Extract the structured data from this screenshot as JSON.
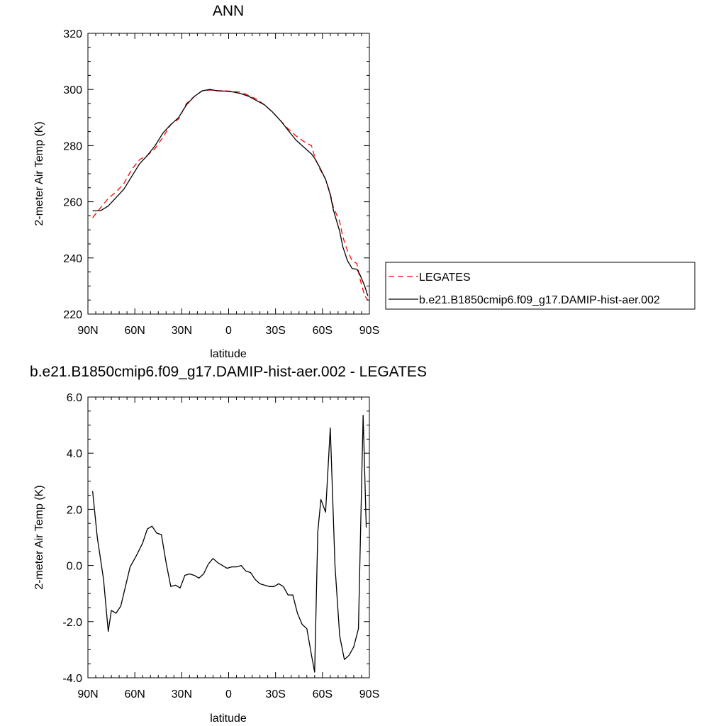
{
  "chart_data": [
    {
      "type": "line",
      "title": "ANN",
      "xlabel": "latitude",
      "ylabel": "2-meter Air Temp (K)",
      "xlim": [
        90,
        -90
      ],
      "ylim": [
        220,
        320
      ],
      "x_ticks": [
        {
          "value": 90,
          "label": "90N"
        },
        {
          "value": 60,
          "label": "60N"
        },
        {
          "value": 30,
          "label": "30N"
        },
        {
          "value": 0,
          "label": "0"
        },
        {
          "value": -30,
          "label": "30S"
        },
        {
          "value": -60,
          "label": "60S"
        },
        {
          "value": -90,
          "label": "90S"
        }
      ],
      "y_ticks": [
        {
          "value": 220,
          "label": "220"
        },
        {
          "value": 240,
          "label": "240"
        },
        {
          "value": 260,
          "label": "260"
        },
        {
          "value": 280,
          "label": "280"
        },
        {
          "value": 300,
          "label": "300"
        },
        {
          "value": 320,
          "label": "320"
        }
      ],
      "legend_position": "right",
      "series": [
        {
          "name": "LEGATES",
          "color": "#ff0000",
          "dash": "dashed",
          "x": [
            87,
            82,
            77,
            72,
            67,
            62,
            57,
            52,
            47,
            42,
            37,
            32,
            27,
            22,
            17,
            12,
            7,
            2,
            -3,
            -8,
            -13,
            -18,
            -23,
            -28,
            -33,
            -38,
            -43,
            -48,
            -53,
            -55,
            -58,
            -62,
            -65,
            -67,
            -71,
            -73,
            -76,
            -79,
            -82,
            -84,
            -87,
            -89
          ],
          "y": [
            254.3,
            257.8,
            261.2,
            263.5,
            266.5,
            271.5,
            275.0,
            276.5,
            279.0,
            283.0,
            287.5,
            289.5,
            295.0,
            297.5,
            299.5,
            299.8,
            299.6,
            299.5,
            299.3,
            299.0,
            297.8,
            296.5,
            294.5,
            292.0,
            289.0,
            286.0,
            283.5,
            281.5,
            280.0,
            276.0,
            272.0,
            268.0,
            263.0,
            258.0,
            253.0,
            247.5,
            242.5,
            239.0,
            238.0,
            232.5,
            226.5,
            225.0
          ]
        },
        {
          "name": "b.e21.B1850cmip6.f09_g17.DAMIP-hist-aer.002",
          "color": "#000000",
          "dash": "solid",
          "x": [
            87,
            82,
            77,
            72,
            67,
            62,
            57,
            52,
            47,
            42,
            37,
            32,
            27,
            22,
            17,
            12,
            7,
            2,
            -3,
            -8,
            -13,
            -18,
            -23,
            -28,
            -33,
            -38,
            -43,
            -48,
            -53,
            -55,
            -58,
            -62,
            -65,
            -67,
            -71,
            -73,
            -76,
            -79,
            -82,
            -84,
            -87,
            -89
          ],
          "y": [
            256.8,
            256.8,
            258.5,
            261.5,
            264.5,
            269.0,
            273.5,
            276.5,
            280.0,
            284.5,
            287.5,
            290.0,
            294.5,
            297.5,
            299.5,
            300.0,
            299.5,
            299.4,
            299.1,
            298.5,
            297.5,
            296.0,
            294.5,
            292.0,
            289.0,
            285.5,
            282.0,
            279.5,
            277.0,
            275.5,
            272.5,
            268.0,
            262.5,
            257.0,
            249.5,
            244.0,
            239.0,
            236.2,
            236.0,
            234.0,
            230.0,
            226.5
          ]
        }
      ]
    },
    {
      "type": "line",
      "title": "b.e21.B1850cmip6.f09_g17.DAMIP-hist-aer.002 - LEGATES",
      "xlabel": "latitude",
      "ylabel": "2-meter Air Temp (K)",
      "xlim": [
        90,
        -90
      ],
      "ylim": [
        -4,
        6
      ],
      "x_ticks": [
        {
          "value": 90,
          "label": "90N"
        },
        {
          "value": 60,
          "label": "60N"
        },
        {
          "value": 30,
          "label": "30N"
        },
        {
          "value": 0,
          "label": "0"
        },
        {
          "value": -30,
          "label": "30S"
        },
        {
          "value": -60,
          "label": "60S"
        },
        {
          "value": -90,
          "label": "90S"
        }
      ],
      "y_ticks": [
        {
          "value": -4,
          "label": "-4.0"
        },
        {
          "value": -2,
          "label": "-2.0"
        },
        {
          "value": 0,
          "label": "0.0"
        },
        {
          "value": 2,
          "label": "2.0"
        },
        {
          "value": 4,
          "label": "4.0"
        },
        {
          "value": 6,
          "label": "6.0"
        }
      ],
      "series": [
        {
          "color": "#000000",
          "dash": "solid",
          "x": [
            87,
            84,
            80,
            77,
            75,
            72,
            69,
            63,
            59,
            55,
            52,
            49,
            46,
            43,
            40,
            37,
            34,
            31,
            28,
            25,
            22,
            19,
            16,
            13,
            10,
            7,
            4,
            1,
            -2,
            -5,
            -8,
            -11,
            -14,
            -17,
            -20,
            -23,
            -26,
            -29,
            -32,
            -35,
            -38,
            -41,
            -44,
            -47,
            -50,
            -53,
            -55,
            -57,
            -59,
            -62,
            -65,
            -68,
            -71,
            -74,
            -77,
            -80,
            -83,
            -86,
            -88
          ],
          "y": [
            2.65,
            1.0,
            -0.5,
            -2.35,
            -1.6,
            -1.7,
            -1.45,
            -0.05,
            0.35,
            0.8,
            1.3,
            1.4,
            1.15,
            1.1,
            0.1,
            -0.75,
            -0.7,
            -0.8,
            -0.35,
            -0.3,
            -0.35,
            -0.45,
            -0.3,
            0.05,
            0.25,
            0.1,
            0.0,
            -0.1,
            -0.05,
            -0.05,
            0.0,
            -0.2,
            -0.25,
            -0.5,
            -0.65,
            -0.7,
            -0.75,
            -0.75,
            -0.65,
            -0.75,
            -1.05,
            -1.05,
            -1.7,
            -2.1,
            -2.25,
            -3.2,
            -3.8,
            1.2,
            2.35,
            1.9,
            4.9,
            0.0,
            -2.5,
            -3.35,
            -3.2,
            -2.9,
            -2.25,
            5.35,
            1.35
          ]
        }
      ]
    }
  ]
}
